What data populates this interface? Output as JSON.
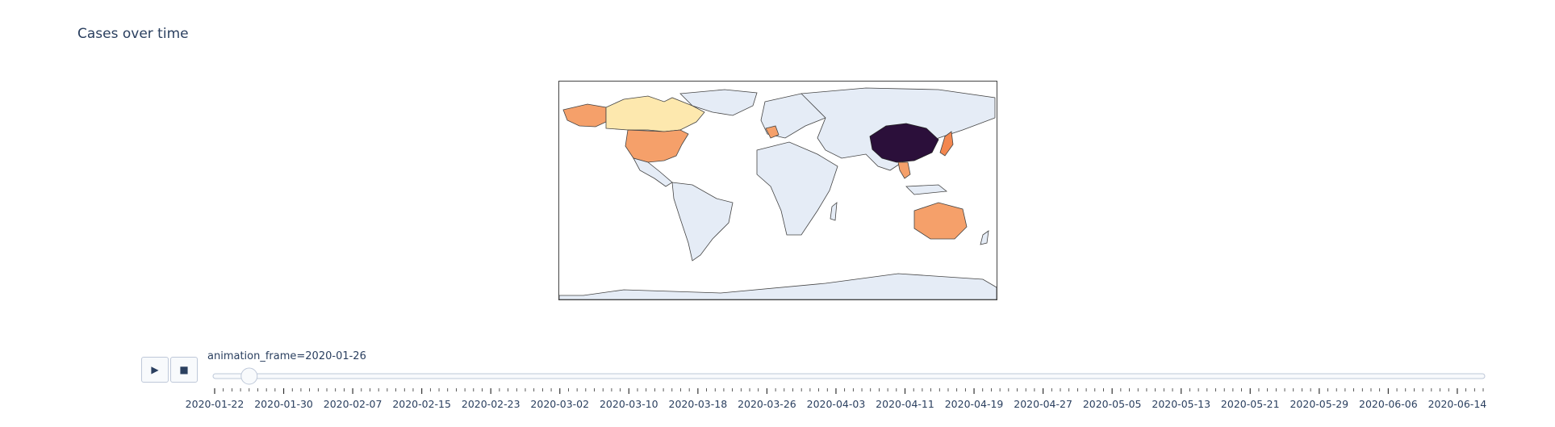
{
  "title": "Cases over time",
  "controls": {
    "play_icon": "play-icon",
    "stop_icon": "stop-icon",
    "play_glyph": "▶",
    "stop_glyph": "■"
  },
  "slider": {
    "prefix": "animation_frame=",
    "current": "2020-01-26",
    "label": "animation_frame=2020-01-26",
    "start_date": "2020-01-22",
    "end_date": "2020-06-17",
    "tick_labels": [
      "2020-01-22",
      "2020-01-30",
      "2020-02-07",
      "2020-02-15",
      "2020-02-23",
      "2020-03-02",
      "2020-03-10",
      "2020-03-18",
      "2020-03-26",
      "2020-04-03",
      "2020-04-11",
      "2020-04-19",
      "2020-04-27",
      "2020-05-05",
      "2020-05-13",
      "2020-05-21",
      "2020-05-29",
      "2020-06-06",
      "2020-06-14"
    ]
  },
  "colors": {
    "land": "#e5ecf6",
    "border": "#444444",
    "china": "#2b0f3a",
    "usa": "#f5a06a",
    "australia": "#f5a06a",
    "canada": "#fde8ae",
    "france": "#f5a06a",
    "japan": "#f3874f",
    "se_asia": "#f5a06a",
    "accent": "#2a3f5f"
  },
  "chart_data": {
    "type": "choropleth",
    "title": "Cases over time",
    "frame": "2020-01-26",
    "colorscale": "inferno-reversed",
    "regions": [
      {
        "name": "China",
        "level": "highest"
      },
      {
        "name": "Japan",
        "level": "medium"
      },
      {
        "name": "Thailand / SE Asia",
        "level": "medium"
      },
      {
        "name": "United States",
        "level": "medium"
      },
      {
        "name": "Australia",
        "level": "medium"
      },
      {
        "name": "France",
        "level": "medium"
      },
      {
        "name": "Canada",
        "level": "low"
      }
    ]
  }
}
